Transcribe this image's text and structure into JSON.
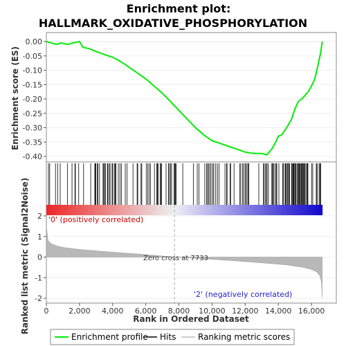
{
  "chart_data": {
    "type": "line",
    "title_line1": "Enrichment plot:",
    "title_line2": "HALLMARK_OXIDATIVE_PHOSPHORYLATION",
    "es_ylabel": "Enrichment score (ES)",
    "metric_ylabel": "Ranked list metric (Signal2Noise)",
    "xlabel": "Rank in Ordered Dataset",
    "xlim": [
      0,
      17500
    ],
    "x_ticks": [
      0,
      2000,
      4000,
      6000,
      8000,
      10000,
      12000,
      14000,
      16000
    ],
    "x_tick_labels": [
      "0",
      "2,000",
      "4,000",
      "6,000",
      "8,000",
      "10,000",
      "12,000",
      "14,000",
      "16,000"
    ],
    "es_ylim": [
      -0.42,
      0.02
    ],
    "es_ticks": [
      0.0,
      -0.05,
      -0.1,
      -0.15,
      -0.2,
      -0.25,
      -0.3,
      -0.35,
      -0.4
    ],
    "es_tick_labels": [
      "0.00",
      "-0.05",
      "-0.10",
      "-0.15",
      "-0.20",
      "-0.25",
      "-0.30",
      "-0.35",
      "-0.40"
    ],
    "metric_ylim": [
      -2,
      2
    ],
    "metric_ticks": [
      2,
      1,
      0,
      -1,
      -2
    ],
    "metric_tick_labels": [
      "2",
      "1",
      "0",
      "-1",
      "-2"
    ],
    "enrichment_profile": {
      "name": "Enrichment profile",
      "color": "#00ee00",
      "x": [
        0,
        300,
        600,
        900,
        1300,
        1600,
        2000,
        2200,
        2600,
        3000,
        3500,
        4000,
        4500,
        5000,
        5500,
        6000,
        6500,
        7000,
        7500,
        8000,
        8500,
        9000,
        9500,
        10000,
        10500,
        11000,
        11500,
        12000,
        12500,
        13000,
        13300,
        13600,
        13800,
        14000,
        14200,
        14500,
        14800,
        15000,
        15200,
        15500,
        15800,
        16000,
        16200,
        16400,
        16550,
        16650
      ],
      "y": [
        0.0,
        -0.005,
        -0.01,
        -0.005,
        -0.01,
        -0.005,
        0.0,
        -0.02,
        -0.025,
        -0.035,
        -0.045,
        -0.055,
        -0.07,
        -0.09,
        -0.11,
        -0.13,
        -0.155,
        -0.18,
        -0.21,
        -0.24,
        -0.27,
        -0.3,
        -0.325,
        -0.345,
        -0.355,
        -0.365,
        -0.375,
        -0.385,
        -0.39,
        -0.39,
        -0.395,
        -0.375,
        -0.355,
        -0.33,
        -0.325,
        -0.3,
        -0.27,
        -0.235,
        -0.21,
        -0.195,
        -0.175,
        -0.155,
        -0.13,
        -0.08,
        -0.04,
        0.0
      ]
    },
    "hits_name": "Hits",
    "ranking_metric": {
      "name": "Ranking metric scores",
      "x": [
        0,
        100,
        300,
        600,
        1000,
        2000,
        4000,
        6000,
        7733,
        9000,
        11000,
        13000,
        14500,
        15500,
        16000,
        16300,
        16500,
        16600,
        16650
      ],
      "y": [
        1.5,
        0.8,
        0.65,
        0.55,
        0.47,
        0.37,
        0.24,
        0.12,
        0.0,
        -0.06,
        -0.16,
        -0.28,
        -0.38,
        -0.5,
        -0.6,
        -0.72,
        -0.9,
        -1.2,
        -1.95
      ]
    },
    "zero_cross_label": "Zero cross at 7733",
    "zero_cross_x": 7733,
    "positive_label": "'0' (positively correlated)",
    "negative_label": "'2' (negatively correlated)",
    "legend_position": "bottom"
  }
}
